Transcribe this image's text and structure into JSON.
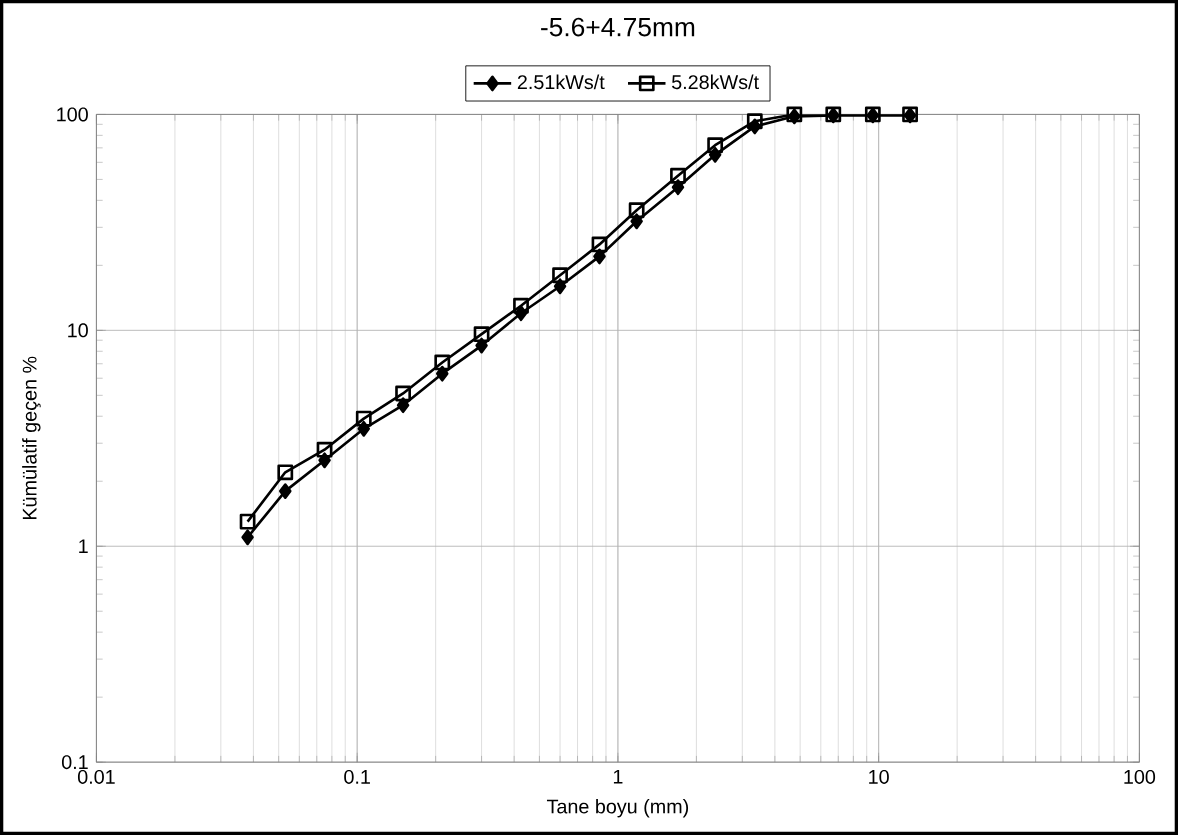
{
  "chart_data": {
    "type": "line",
    "title": "-5.6+4.75mm",
    "xlabel": "Tane boyu (mm)",
    "ylabel": "Kümülatif geçen %",
    "log": "xy",
    "grid": true,
    "legend": "top",
    "line_style": "solid",
    "x": [
      0.038,
      0.053,
      0.075,
      0.106,
      0.15,
      0.212,
      0.3,
      0.425,
      0.6,
      0.85,
      1.18,
      1.7,
      2.36,
      3.35,
      4.75,
      6.7,
      9.5,
      13.2
    ],
    "series": [
      {
        "name": "2.51kWs/t",
        "color": "#000000",
        "marker": "diamond",
        "values": [
          1.1,
          1.8,
          2.5,
          3.5,
          4.5,
          6.3,
          8.5,
          12,
          16,
          22,
          32,
          46,
          65,
          88,
          98,
          99,
          99,
          99
        ]
      },
      {
        "name": "5.28kWs/t",
        "color": "#000000",
        "marker": "square",
        "values": [
          1.3,
          2.2,
          2.8,
          3.9,
          5.1,
          7.1,
          9.6,
          13,
          18,
          25,
          36,
          52,
          72,
          93,
          100,
          100,
          100,
          100
        ]
      }
    ],
    "xlim": [
      0.01,
      100
    ],
    "ylim": [
      0.1,
      100
    ],
    "xticks": [
      0.01,
      0.1,
      1,
      10,
      100
    ],
    "yticks": [
      0.1,
      1,
      10,
      100
    ]
  }
}
